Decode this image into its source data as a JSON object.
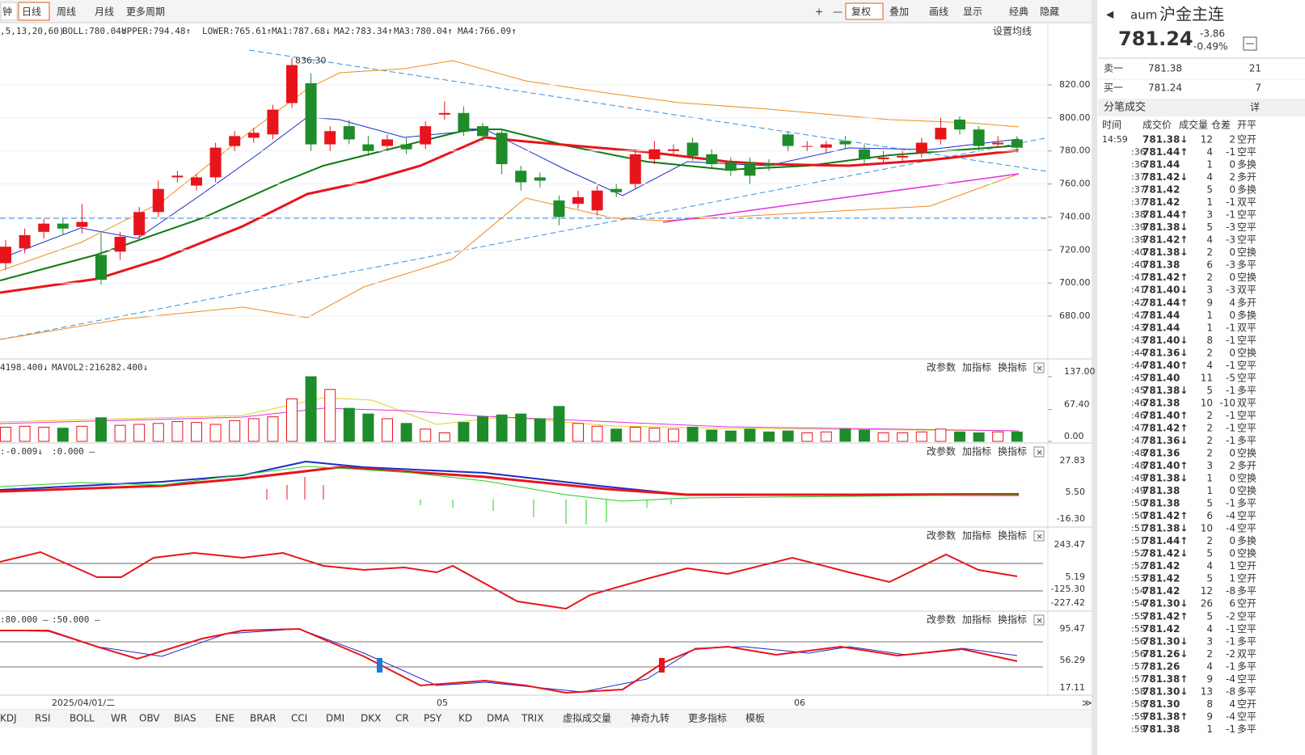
{
  "toolbar": {
    "left": [
      "钟",
      "日线",
      "周线",
      "月线",
      "更多周期"
    ],
    "right": [
      "+",
      "—",
      "复权",
      "叠加",
      "画线",
      "显示",
      "经典",
      "隐藏"
    ]
  },
  "main": {
    "legend": [
      ",5,13,20,60)",
      "BOLL:780.04↑",
      "UPPER:794.48↑",
      "LOWER:765.61↑",
      "MA1:787.68↓",
      "MA2:783.34↑",
      "MA3:780.04↑",
      "MA4:766.09↑"
    ],
    "settings": "设置均线",
    "high_label": "836.30",
    "ylim": [
      656,
      844.5
    ],
    "yticks": [
      {
        "value": 820,
        "label": "820.00"
      },
      {
        "value": 800,
        "label": "800.00"
      },
      {
        "value": 780,
        "label": "780.00"
      },
      {
        "value": 760,
        "label": "760.00"
      },
      {
        "value": 740,
        "label": "740.00"
      },
      {
        "value": 720,
        "label": "720.00"
      },
      {
        "value": 700,
        "label": "700.00"
      },
      {
        "value": 680,
        "label": "680.00"
      }
    ],
    "open": [
      712,
      721,
      731,
      736,
      734,
      717,
      719,
      729,
      743,
      764,
      759,
      764,
      783,
      788,
      790,
      809,
      821,
      784,
      795,
      784,
      783,
      784,
      784,
      802,
      803,
      795,
      791,
      768,
      764,
      750,
      748,
      744,
      757,
      760,
      775,
      780,
      785,
      778,
      773,
      773,
      772,
      790,
      783,
      782,
      786,
      781,
      775,
      776,
      779,
      787,
      799,
      793,
      784,
      787
    ],
    "high": [
      726,
      733,
      739,
      739,
      748,
      730,
      731,
      746,
      762,
      768,
      766,
      785,
      792,
      794,
      808,
      836.3,
      827,
      795,
      799,
      789,
      790,
      788,
      798,
      810,
      807,
      797,
      793,
      771,
      767,
      753,
      756,
      759,
      760,
      781,
      786,
      784,
      788,
      781,
      776,
      776,
      775,
      792,
      786,
      786,
      789,
      784,
      780,
      780,
      788,
      800,
      801,
      795,
      789,
      789
    ],
    "low": [
      708,
      718,
      727,
      729,
      730,
      699,
      714,
      726,
      740,
      761,
      756,
      761,
      780,
      785,
      787,
      806,
      780,
      780,
      784,
      777,
      780,
      778,
      781,
      799,
      789,
      786,
      766,
      756,
      758,
      735,
      745,
      741,
      752,
      757,
      772,
      777,
      774,
      769,
      765,
      760,
      768,
      780,
      780,
      779,
      781,
      772,
      772,
      773,
      776,
      784,
      790,
      780,
      782,
      779
    ],
    "close": [
      722,
      729,
      736,
      733,
      737,
      702,
      728,
      743,
      757,
      765,
      764,
      782,
      789,
      791,
      805,
      832,
      784,
      792,
      787,
      780,
      787,
      781,
      795,
      803,
      792,
      789,
      772,
      761,
      762,
      740,
      752,
      756,
      755,
      778,
      781,
      781,
      777,
      772,
      768,
      765,
      771,
      783,
      783,
      784,
      784,
      775,
      776,
      777,
      785,
      794,
      793,
      783,
      785,
      782
    ]
  },
  "volume": {
    "legend": [
      "4198.400↓",
      "MAVOL2:216282.400↓"
    ],
    "buttons": [
      "改参数",
      "加指标",
      "换指标"
    ],
    "ylim": [
      0,
      137
    ],
    "yticks": [
      {
        "value": 137,
        "label": "137.00"
      },
      {
        "value": 67.4,
        "label": "67.40"
      },
      {
        "value": 0,
        "label": "0.00"
      }
    ],
    "values": [
      30,
      32,
      30,
      28,
      32,
      50,
      34,
      36,
      38,
      42,
      40,
      36,
      44,
      48,
      52,
      90,
      137,
      110,
      70,
      58,
      48,
      38,
      26,
      18,
      40,
      52,
      56,
      58,
      48,
      74,
      38,
      32,
      26,
      30,
      28,
      26,
      30,
      24,
      22,
      26,
      20,
      22,
      18,
      20,
      26,
      24,
      18,
      18,
      20,
      26,
      20,
      18,
      20,
      20
    ]
  },
  "panels": [
    {
      "legend": [
        ":-0.009↓",
        ":0.000 —"
      ],
      "buttons": [
        "改参数",
        "加指标",
        "换指标"
      ],
      "yticks": [
        "27.83",
        "5.50",
        "-16.30"
      ]
    },
    {
      "legend": [],
      "buttons": [
        "改参数",
        "加指标",
        "换指标"
      ],
      "yticks": [
        "243.47",
        "5.19",
        "-125.30",
        "-227.42"
      ]
    },
    {
      "legend": [
        ":80.000 —",
        ":50.000 —"
      ],
      "buttons": [
        "改参数",
        "加指标",
        "换指标"
      ],
      "yticks": [
        "95.47",
        "56.29",
        "17.11"
      ]
    }
  ],
  "date_axis": [
    "2025/04/01/二",
    "05",
    "06"
  ],
  "tabs": [
    "KDJ",
    "RSI",
    "BOLL",
    "WR",
    "OBV",
    "BIAS",
    "ENE",
    "BRAR",
    "CCI",
    "DMI",
    "DKX",
    "CR",
    "PSY",
    "KD",
    "DMA",
    "TRIX",
    "虚拟成交量",
    "神奇九转",
    "更多指标",
    "模板"
  ],
  "quote": {
    "code": "aum",
    "name": "沪金主连",
    "price": "781.24",
    "change": "-3.86",
    "pct": "-0.49%",
    "sell_label": "卖一",
    "sell_price": "781.38",
    "sell_vol": "21",
    "buy_label": "买一",
    "buy_price": "781.24",
    "buy_vol": "7",
    "ticks_title": "分笔成交",
    "detail": "详"
  },
  "trades": {
    "header": [
      "时间",
      "成交价",
      "成交量",
      "仓差",
      "开平"
    ],
    "rows": [
      [
        "14:59",
        "781.38↓",
        "12",
        "2",
        "空开"
      ],
      [
        ":36",
        "781.44↑",
        "4",
        "-1",
        "空平"
      ],
      [
        ":36",
        "781.44",
        "1",
        "0",
        "多换"
      ],
      [
        ":37",
        "781.42↓",
        "4",
        "2",
        "多开"
      ],
      [
        ":37",
        "781.42",
        "5",
        "0",
        "多换"
      ],
      [
        ":37",
        "781.42",
        "1",
        "-1",
        "双平"
      ],
      [
        ":38",
        "781.44↑",
        "3",
        "-1",
        "空平"
      ],
      [
        ":39",
        "781.38↓",
        "5",
        "-3",
        "空平"
      ],
      [
        ":39",
        "781.42↑",
        "4",
        "-3",
        "空平"
      ],
      [
        ":40",
        "781.38↓",
        "2",
        "0",
        "空换"
      ],
      [
        ":40",
        "781.38",
        "6",
        "-3",
        "多平"
      ],
      [
        ":41",
        "781.42↑",
        "2",
        "0",
        "空换"
      ],
      [
        ":41",
        "781.40↓",
        "3",
        "-3",
        "双平"
      ],
      [
        ":42",
        "781.44↑",
        "9",
        "4",
        "多开"
      ],
      [
        ":42",
        "781.44",
        "1",
        "0",
        "多换"
      ],
      [
        ":43",
        "781.44",
        "1",
        "-1",
        "双平"
      ],
      [
        ":43",
        "781.40↓",
        "8",
        "-1",
        "空平"
      ],
      [
        ":44",
        "781.36↓",
        "2",
        "0",
        "空换"
      ],
      [
        ":44",
        "781.40↑",
        "4",
        "-1",
        "空平"
      ],
      [
        ":45",
        "781.40",
        "11",
        "-5",
        "空平"
      ],
      [
        ":45",
        "781.38↓",
        "5",
        "-1",
        "多平"
      ],
      [
        ":46",
        "781.38",
        "10",
        "-10",
        "双平"
      ],
      [
        ":46",
        "781.40↑",
        "2",
        "-1",
        "空平"
      ],
      [
        ":47",
        "781.42↑",
        "2",
        "-1",
        "空平"
      ],
      [
        ":47",
        "781.36↓",
        "2",
        "-1",
        "多平"
      ],
      [
        ":48",
        "781.36",
        "2",
        "0",
        "空换"
      ],
      [
        ":48",
        "781.40↑",
        "3",
        "2",
        "多开"
      ],
      [
        ":49",
        "781.38↓",
        "1",
        "0",
        "空换"
      ],
      [
        ":49",
        "781.38",
        "1",
        "0",
        "空换"
      ],
      [
        ":50",
        "781.38",
        "5",
        "-1",
        "多平"
      ],
      [
        ":50",
        "781.42↑",
        "6",
        "-4",
        "空平"
      ],
      [
        ":51",
        "781.38↓",
        "10",
        "-4",
        "空平"
      ],
      [
        ":51",
        "781.44↑",
        "2",
        "0",
        "多换"
      ],
      [
        ":52",
        "781.42↓",
        "5",
        "0",
        "空换"
      ],
      [
        ":52",
        "781.42",
        "4",
        "1",
        "空开"
      ],
      [
        ":53",
        "781.42",
        "5",
        "1",
        "空开"
      ],
      [
        ":54",
        "781.42",
        "12",
        "-8",
        "多平"
      ],
      [
        ":54",
        "781.30↓",
        "26",
        "6",
        "空开"
      ],
      [
        ":55",
        "781.42↑",
        "5",
        "-2",
        "空平"
      ],
      [
        ":55",
        "781.42",
        "4",
        "-1",
        "空平"
      ],
      [
        ":56",
        "781.30↓",
        "3",
        "-1",
        "多平"
      ],
      [
        ":56",
        "781.26↓",
        "2",
        "-2",
        "双平"
      ],
      [
        ":57",
        "781.26",
        "4",
        "-1",
        "多平"
      ],
      [
        ":57",
        "781.38↑",
        "9",
        "-4",
        "空平"
      ],
      [
        ":58",
        "781.30↓",
        "13",
        "-8",
        "多平"
      ],
      [
        ":58",
        "781.30",
        "8",
        "4",
        "空开"
      ],
      [
        ":59",
        "781.38↑",
        "9",
        "-4",
        "空平"
      ],
      [
        ":59",
        "781.38",
        "1",
        "-1",
        "多平"
      ]
    ]
  }
}
